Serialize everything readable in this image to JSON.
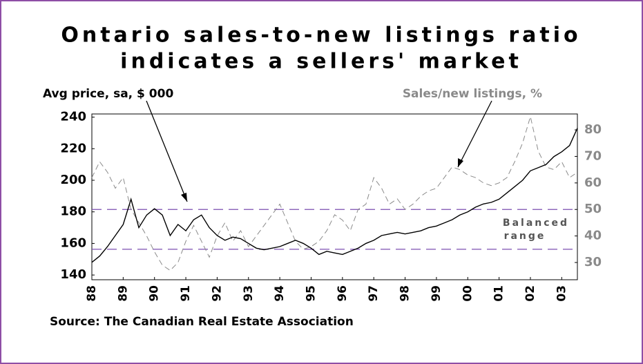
{
  "chart_data": {
    "type": "line",
    "title": [
      "Ontario sales-to-new listings ratio",
      "indicates a sellers' market"
    ],
    "y_label": "Avg price, sa, $ 000",
    "y2_label": "Sales/new listings, %",
    "source": "Source: The Canadian Real Estate Association",
    "annotation": [
      "Balanced",
      "range"
    ],
    "reference_lines": [
      {
        "value": 50,
        "axis": "y2",
        "color": "#7b4fb0"
      },
      {
        "value": 35,
        "axis": "y2",
        "color": "#7b4fb0"
      }
    ],
    "x": [
      1988,
      1988.25,
      1988.5,
      1988.75,
      1989,
      1989.25,
      1989.5,
      1989.75,
      1990,
      1990.25,
      1990.5,
      1990.75,
      1991,
      1991.25,
      1991.5,
      1991.75,
      1992,
      1992.25,
      1992.5,
      1992.75,
      1993,
      1993.25,
      1993.5,
      1993.75,
      1994,
      1994.25,
      1994.5,
      1994.75,
      1995,
      1995.25,
      1995.5,
      1995.75,
      1996,
      1996.25,
      1996.5,
      1996.75,
      1997,
      1997.25,
      1997.5,
      1997.75,
      1998,
      1998.25,
      1998.5,
      1998.75,
      1999,
      1999.25,
      1999.5,
      1999.75,
      2000,
      2000.25,
      2000.5,
      2000.75,
      2001,
      2001.25,
      2001.5,
      2001.75,
      2002,
      2002.25,
      2002.5,
      2002.75,
      2003,
      2003.25,
      2003.5
    ],
    "series": [
      {
        "name": "Avg price, sa, $ 000",
        "color": "#000000",
        "axis": "y",
        "values": [
          148,
          152,
          158,
          165,
          172,
          188,
          170,
          178,
          182,
          178,
          165,
          172,
          168,
          175,
          178,
          170,
          165,
          162,
          164,
          163,
          160,
          157,
          156,
          157,
          158,
          160,
          162,
          160,
          157,
          153,
          155,
          154,
          153,
          155,
          157,
          160,
          162,
          165,
          166,
          167,
          166,
          167,
          168,
          170,
          171,
          173,
          175,
          178,
          180,
          183,
          185,
          186,
          188,
          192,
          196,
          200,
          206,
          208,
          210,
          215,
          218,
          222,
          233
        ]
      },
      {
        "name": "Sales/new listings, %",
        "color": "#8a8a8a",
        "axis": "y2",
        "values": [
          62,
          68,
          64,
          58,
          62,
          50,
          45,
          40,
          34,
          29,
          27,
          30,
          38,
          44,
          38,
          32,
          40,
          45,
          38,
          42,
          36,
          40,
          44,
          48,
          52,
          45,
          38,
          35,
          36,
          38,
          42,
          48,
          46,
          42,
          50,
          52,
          62,
          58,
          52,
          54,
          50,
          52,
          55,
          57,
          58,
          62,
          66,
          65,
          63,
          62,
          60,
          59,
          60,
          62,
          68,
          75,
          85,
          72,
          66,
          65,
          68,
          62,
          64
        ]
      }
    ],
    "xlim": [
      1988,
      2003.5
    ],
    "xticks": [
      {
        "value": 1988,
        "label": "88"
      },
      {
        "value": 1989,
        "label": "89"
      },
      {
        "value": 1990,
        "label": "90"
      },
      {
        "value": 1991,
        "label": "91"
      },
      {
        "value": 1992,
        "label": "92"
      },
      {
        "value": 1993,
        "label": "93"
      },
      {
        "value": 1994,
        "label": "94"
      },
      {
        "value": 1995,
        "label": "95"
      },
      {
        "value": 1996,
        "label": "96"
      },
      {
        "value": 1997,
        "label": "97"
      },
      {
        "value": 1998,
        "label": "98"
      },
      {
        "value": 1999,
        "label": "99"
      },
      {
        "value": 2000,
        "label": "00"
      },
      {
        "value": 2001,
        "label": "01"
      },
      {
        "value": 2002,
        "label": "02"
      },
      {
        "value": 2003,
        "label": "03"
      }
    ],
    "ylim": [
      137,
      242
    ],
    "yticks": [
      140,
      160,
      180,
      200,
      220,
      240
    ],
    "y2lim": [
      23.5,
      86
    ],
    "y2ticks": [
      30,
      40,
      50,
      60,
      70,
      80
    ]
  }
}
